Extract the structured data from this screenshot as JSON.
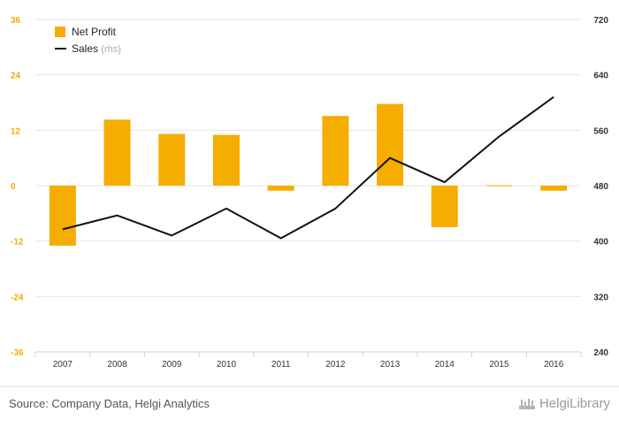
{
  "chart_data": {
    "type": "bar",
    "categories": [
      "2007",
      "2008",
      "2009",
      "2010",
      "2011",
      "2012",
      "2013",
      "2014",
      "2015",
      "2016"
    ],
    "series": [
      {
        "name": "Net Profit",
        "type": "bar",
        "axis": "left",
        "color": "#F5AD00",
        "values": [
          -13,
          14.3,
          11.2,
          11.0,
          -1.1,
          15.1,
          17.7,
          -9.0,
          0.1,
          -1.1
        ]
      },
      {
        "name": "Sales",
        "name_suffix": "(rhs)",
        "type": "line",
        "axis": "right",
        "color": "#111111",
        "values": [
          417,
          437,
          408,
          447,
          404,
          447,
          520,
          485,
          551,
          608
        ]
      }
    ],
    "left_axis": {
      "ticks": [
        "36",
        "24",
        "12",
        "0",
        "-12",
        "-24",
        "-36"
      ],
      "ylim": [
        -36,
        36
      ],
      "color": "#F5AD00"
    },
    "right_axis": {
      "ticks": [
        "720",
        "640",
        "560",
        "480",
        "400",
        "320",
        "240"
      ],
      "ylim": [
        240,
        720
      ],
      "color": "#333333"
    },
    "grid": true,
    "legend_position": "top-left"
  },
  "footer": {
    "source": "Source: Company Data, Helgi Analytics",
    "brand": "HelgiLibrary"
  }
}
